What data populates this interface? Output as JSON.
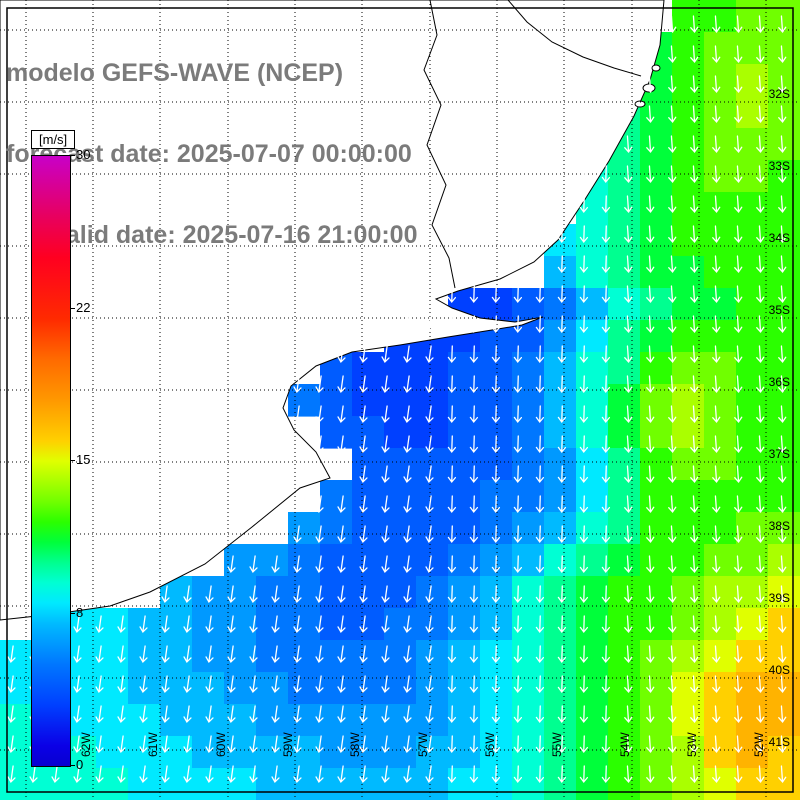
{
  "header": {
    "line1": "modelo GEFS-WAVE (NCEP)",
    "line2": "forecast date: 2025-07-07 00:00:00",
    "line3": "valid date: 2025-07-16 21:00:00"
  },
  "colorbar": {
    "unit": "[m/s]",
    "min": 0,
    "max": 30,
    "ticks": [
      {
        "label": "30",
        "value": 30
      },
      {
        "label": "22",
        "value": 22.5
      },
      {
        "label": "15",
        "value": 15
      },
      {
        "label": "8",
        "value": 7.5
      },
      {
        "label": "0",
        "value": 0
      }
    ]
  },
  "chart_data": {
    "type": "heatmap",
    "units": "m/s",
    "value_min": 0,
    "value_max": 30,
    "legend_position": "left",
    "grid_on": true,
    "arrow_direction": "south",
    "lat_tick_labels": [
      "32S",
      "33S",
      "34S",
      "35S",
      "36S",
      "37S",
      "38S",
      "39S",
      "40S",
      "41S"
    ],
    "lon_tick_labels": [
      "62W",
      "61W",
      "60W",
      "59W",
      "58W",
      "57W",
      "56W",
      "55W",
      "54W",
      "53W",
      "52W"
    ],
    "cell_size": 32,
    "grid_rows": 25,
    "grid_cols": 25,
    "colormap_stops": [
      [
        0,
        "#0800d0"
      ],
      [
        1,
        "#0b00e6"
      ],
      [
        3,
        "#0040ff"
      ],
      [
        5,
        "#0077ff"
      ],
      [
        7,
        "#00baff"
      ],
      [
        8,
        "#00e9ff"
      ],
      [
        9,
        "#00ffd4"
      ],
      [
        10,
        "#00ff90"
      ],
      [
        11,
        "#00ff3a"
      ],
      [
        12,
        "#2bff00"
      ],
      [
        13,
        "#70ff00"
      ],
      [
        14,
        "#aaff00"
      ],
      [
        15,
        "#e0ff00"
      ],
      [
        16,
        "#ffd000"
      ],
      [
        17,
        "#ffb300"
      ],
      [
        18,
        "#ff9800"
      ],
      [
        20,
        "#ff6a00"
      ],
      [
        22,
        "#ff2a00"
      ],
      [
        25,
        "#ff0020"
      ],
      [
        27,
        "#e8005e"
      ],
      [
        30,
        "#c800c8"
      ]
    ],
    "grid": [
      [
        null,
        null,
        null,
        null,
        null,
        null,
        null,
        null,
        null,
        null,
        null,
        null,
        null,
        null,
        null,
        null,
        null,
        null,
        null,
        null,
        null,
        12,
        12,
        13,
        13
      ],
      [
        null,
        null,
        null,
        null,
        null,
        null,
        null,
        null,
        null,
        null,
        null,
        null,
        null,
        null,
        null,
        null,
        null,
        null,
        null,
        null,
        11,
        12,
        13,
        13,
        13
      ],
      [
        null,
        null,
        null,
        null,
        null,
        null,
        null,
        null,
        null,
        null,
        null,
        null,
        null,
        null,
        null,
        null,
        null,
        null,
        null,
        null,
        11,
        12,
        13,
        14,
        13
      ],
      [
        null,
        null,
        null,
        null,
        null,
        null,
        null,
        null,
        null,
        null,
        null,
        null,
        null,
        null,
        null,
        null,
        null,
        null,
        null,
        10,
        11,
        12,
        13,
        14,
        13
      ],
      [
        null,
        null,
        null,
        null,
        null,
        null,
        null,
        null,
        null,
        null,
        null,
        null,
        null,
        null,
        null,
        null,
        null,
        null,
        null,
        10,
        11,
        12,
        13,
        13,
        13
      ],
      [
        null,
        null,
        null,
        null,
        null,
        null,
        null,
        null,
        null,
        null,
        null,
        null,
        null,
        null,
        null,
        null,
        null,
        null,
        9,
        10,
        11,
        12,
        13,
        13,
        12
      ],
      [
        null,
        null,
        null,
        null,
        null,
        null,
        null,
        null,
        null,
        null,
        null,
        null,
        null,
        null,
        null,
        null,
        null,
        null,
        9,
        10,
        11,
        12,
        12,
        12,
        12
      ],
      [
        null,
        null,
        null,
        null,
        null,
        null,
        null,
        null,
        null,
        null,
        null,
        null,
        null,
        null,
        null,
        null,
        null,
        8,
        9,
        10,
        11,
        12,
        12,
        12,
        12
      ],
      [
        null,
        null,
        null,
        null,
        null,
        null,
        null,
        null,
        null,
        null,
        null,
        null,
        null,
        null,
        null,
        null,
        null,
        7,
        9,
        10,
        11,
        11,
        12,
        12,
        12
      ],
      [
        null,
        null,
        null,
        null,
        null,
        null,
        null,
        null,
        null,
        null,
        null,
        null,
        null,
        null,
        3,
        3,
        4,
        5,
        7,
        9,
        10,
        11,
        11,
        12,
        12
      ],
      [
        null,
        null,
        null,
        null,
        null,
        null,
        null,
        null,
        null,
        null,
        null,
        null,
        3,
        3,
        3,
        4,
        4,
        6,
        8,
        10,
        11,
        12,
        12,
        12,
        12
      ],
      [
        null,
        null,
        null,
        null,
        null,
        null,
        null,
        null,
        null,
        null,
        4,
        3,
        3,
        3,
        4,
        4,
        5,
        7,
        9,
        10,
        12,
        13,
        13,
        12,
        12
      ],
      [
        null,
        null,
        null,
        null,
        null,
        null,
        null,
        null,
        null,
        5,
        4,
        3,
        3,
        3,
        4,
        4,
        5,
        7,
        9,
        11,
        13,
        14,
        13,
        12,
        12
      ],
      [
        null,
        null,
        null,
        null,
        null,
        null,
        null,
        null,
        null,
        null,
        4,
        4,
        3,
        3,
        4,
        4,
        5,
        7,
        9,
        11,
        13,
        14,
        13,
        12,
        12
      ],
      [
        null,
        null,
        null,
        null,
        null,
        null,
        null,
        null,
        null,
        null,
        null,
        4,
        4,
        4,
        4,
        4,
        5,
        6,
        8,
        10,
        12,
        13,
        13,
        12,
        12
      ],
      [
        null,
        null,
        null,
        null,
        null,
        null,
        null,
        null,
        null,
        null,
        5,
        4,
        4,
        4,
        4,
        5,
        5,
        6,
        8,
        10,
        12,
        12,
        12,
        12,
        12
      ],
      [
        null,
        null,
        null,
        null,
        null,
        null,
        null,
        null,
        null,
        6,
        5,
        4,
        4,
        4,
        4,
        5,
        6,
        7,
        9,
        10,
        12,
        12,
        12,
        13,
        13
      ],
      [
        null,
        null,
        null,
        null,
        null,
        null,
        null,
        6,
        6,
        5,
        4,
        4,
        4,
        4,
        5,
        6,
        7,
        9,
        10,
        11,
        12,
        12,
        13,
        13,
        14
      ],
      [
        null,
        null,
        null,
        null,
        null,
        7,
        6,
        6,
        5,
        5,
        4,
        4,
        4,
        5,
        6,
        7,
        9,
        10,
        11,
        12,
        12,
        13,
        14,
        14,
        15
      ],
      [
        null,
        null,
        8,
        8,
        7,
        7,
        6,
        6,
        5,
        5,
        4,
        4,
        5,
        5,
        6,
        7,
        9,
        10,
        11,
        12,
        12,
        13,
        14,
        15,
        16
      ],
      [
        8,
        8,
        8,
        8,
        7,
        7,
        6,
        6,
        5,
        5,
        5,
        5,
        5,
        6,
        7,
        8,
        9,
        10,
        11,
        12,
        13,
        14,
        15,
        16,
        16
      ],
      [
        8,
        8,
        8,
        8,
        7,
        7,
        7,
        6,
        6,
        5,
        5,
        5,
        5,
        6,
        7,
        8,
        9,
        10,
        11,
        12,
        13,
        15,
        16,
        17,
        17
      ],
      [
        9,
        9,
        8,
        8,
        8,
        7,
        7,
        7,
        6,
        6,
        6,
        6,
        6,
        6,
        7,
        8,
        9,
        10,
        11,
        12,
        13,
        15,
        16,
        17,
        17
      ],
      [
        9,
        9,
        9,
        8,
        8,
        8,
        7,
        7,
        7,
        7,
        6,
        6,
        6,
        7,
        7,
        8,
        9,
        10,
        11,
        12,
        13,
        14,
        16,
        17,
        16
      ],
      [
        9,
        9,
        9,
        9,
        8,
        8,
        8,
        8,
        7,
        7,
        7,
        7,
        7,
        7,
        8,
        8,
        9,
        10,
        11,
        12,
        13,
        14,
        15,
        16,
        16
      ]
    ]
  }
}
